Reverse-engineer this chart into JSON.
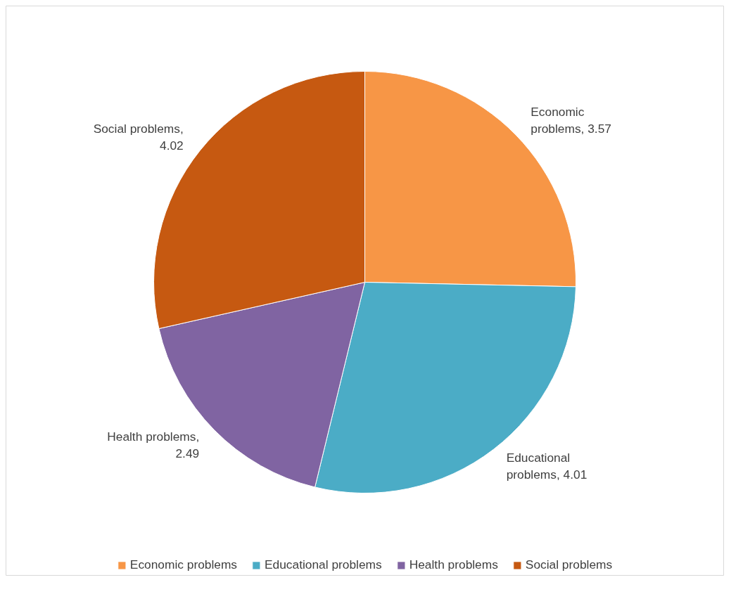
{
  "chart_data": {
    "type": "pie",
    "categories": [
      "Economic problems",
      "Educational problems",
      "Health problems",
      "Social problems"
    ],
    "values": [
      3.57,
      4.01,
      2.49,
      4.02
    ],
    "value_labels": [
      "Economic problems, 3.57",
      "Educational problems, 4.01",
      "Health problems, 2.49",
      "Social problems, 4.02"
    ],
    "colors": [
      "#f79646",
      "#4bacc6",
      "#8064a2",
      "#c65911"
    ],
    "legend": "bottom"
  }
}
